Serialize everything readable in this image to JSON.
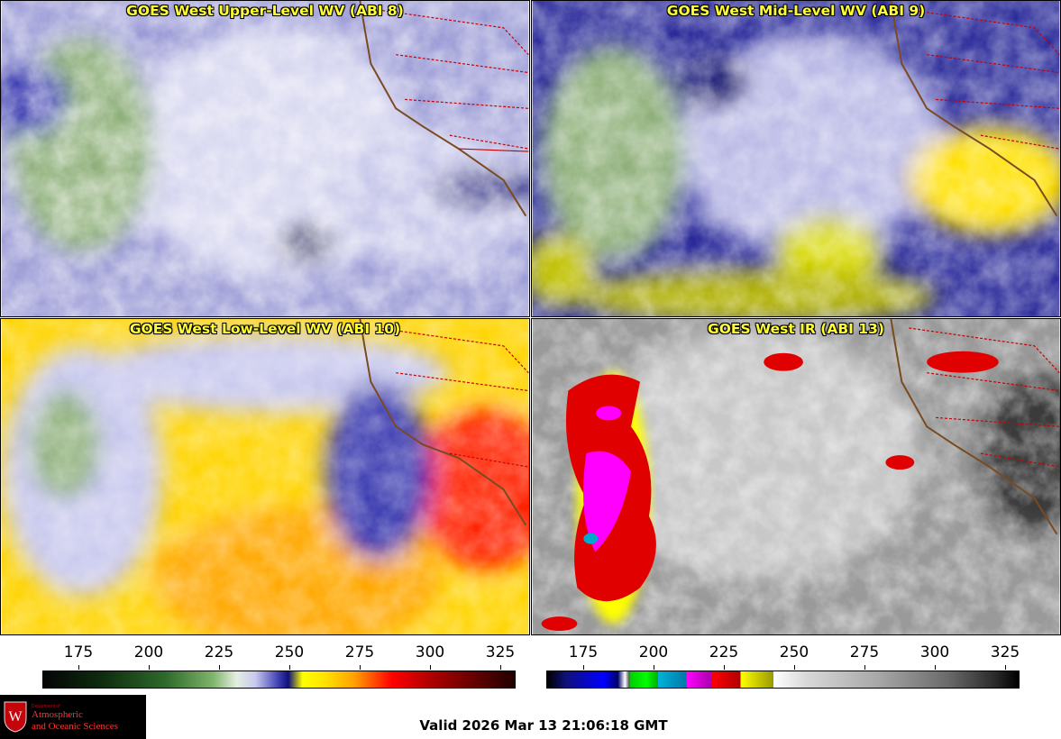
{
  "panels": [
    {
      "title": "GOES West Upper-Level WV (ABI 8)"
    },
    {
      "title": "GOES West Mid-Level WV (ABI 9)"
    },
    {
      "title": "GOES West Low-Level WV (ABI 10)"
    },
    {
      "title": "GOES West IR (ABI 13)"
    }
  ],
  "colorbar_wv": {
    "ticks": [
      "175",
      "200",
      "225",
      "250",
      "275",
      "300",
      "325"
    ]
  },
  "colorbar_ir": {
    "ticks": [
      "175",
      "200",
      "225",
      "250",
      "275",
      "300",
      "325"
    ]
  },
  "logo": {
    "dept": "Department of",
    "line1": "Atmospheric",
    "line2": "and Oceanic Sciences",
    "seal_letter": "W"
  },
  "valid_time": "Valid 2026 Mar 13 21:06:18 GMT",
  "colors": {
    "title_text": "#ffff33",
    "background": "#ffffff",
    "logo_bg": "#000000",
    "logo_text": "#ff3333"
  }
}
